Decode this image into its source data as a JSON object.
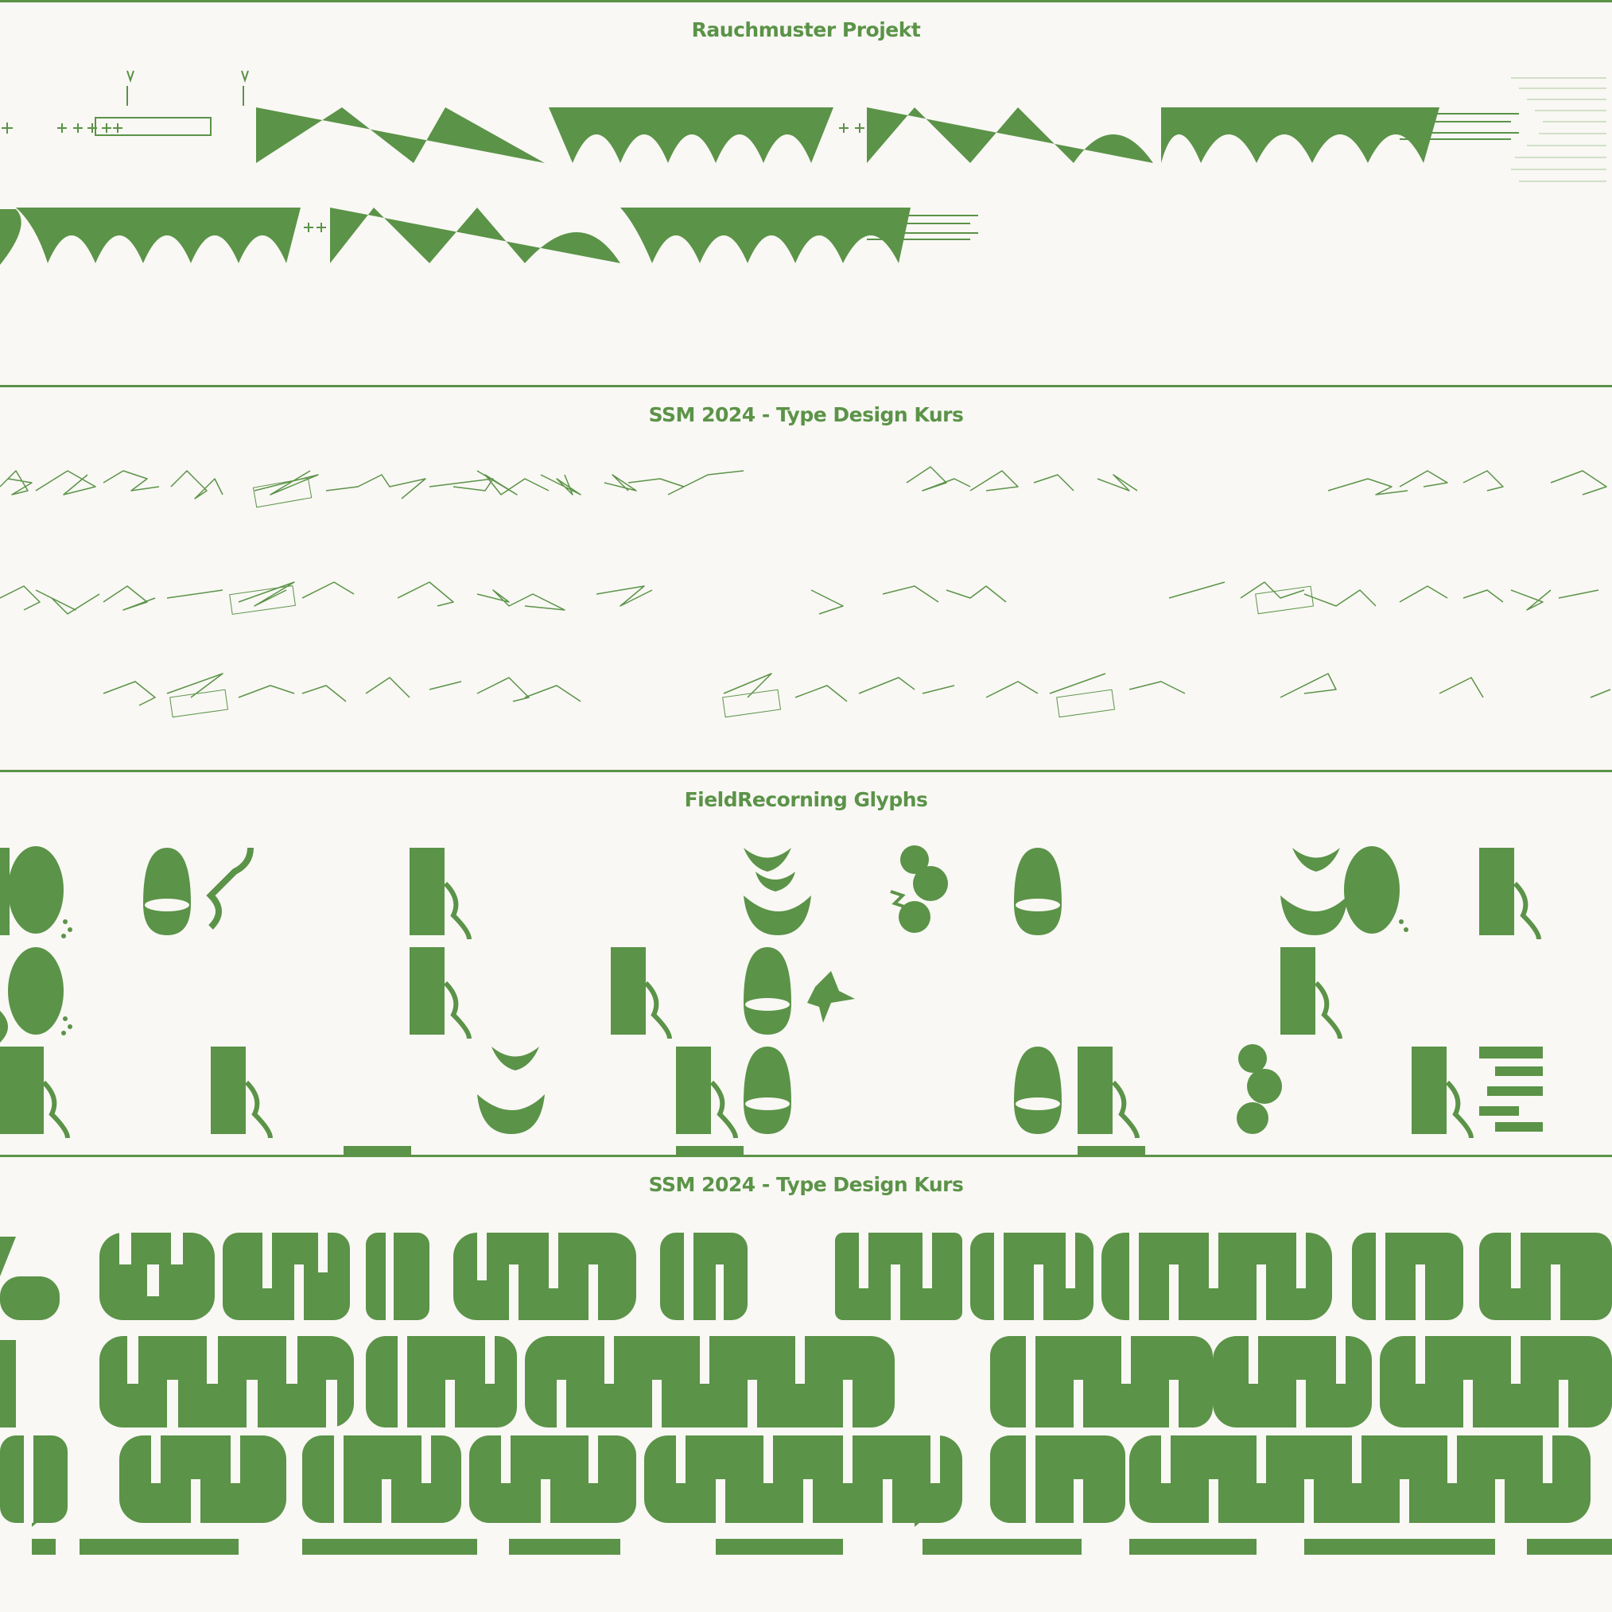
{
  "accent": "#5b9348",
  "background": "#f9f8f4",
  "panels": [
    {
      "title": "Rauchmuster Projekt",
      "specimen": "arched-wave-pattern"
    },
    {
      "title": "SSM 2024 - Type Design Kurs",
      "specimen": "scribble-outline-glyphs"
    },
    {
      "title": "FieldRecorning Glyphs",
      "specimen": "organic-shape-glyphs"
    },
    {
      "title": "SSM 2024 - Type Design Kurs",
      "specimen": "rounded-display-type"
    }
  ]
}
